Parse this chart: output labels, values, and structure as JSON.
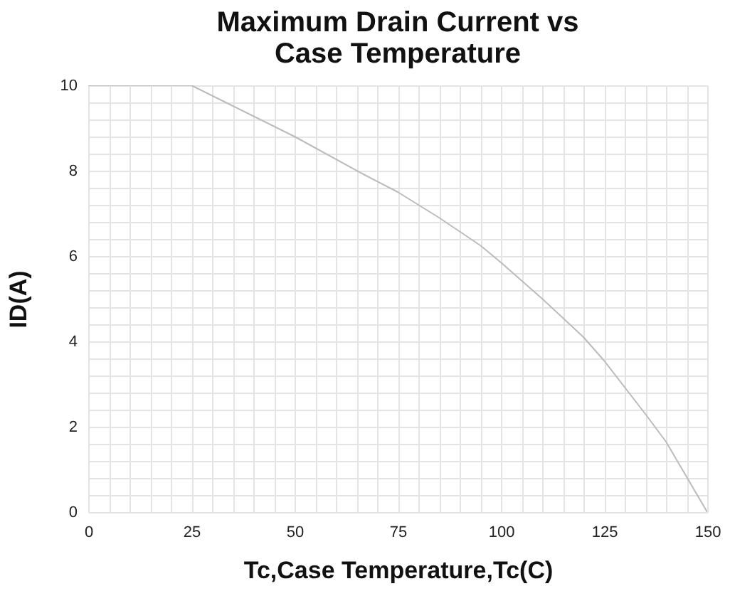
{
  "chart_data": {
    "type": "line",
    "title": "Maximum Drain Current vs\nCase Temperature",
    "xlabel": "Tc,Case Temperature,Tc(C)",
    "ylabel": "ID(A)",
    "x": [
      0,
      25,
      50,
      67,
      75,
      85,
      95,
      100,
      110,
      120,
      125,
      135,
      140,
      150
    ],
    "series": [
      {
        "color": "#bbbbbb",
        "values": [
          10,
          10,
          8.8,
          7.9,
          7.5,
          6.9,
          6.25,
          5.85,
          5.0,
          4.1,
          3.55,
          2.3,
          1.65,
          0
        ]
      }
    ],
    "xlim": [
      0,
      150
    ],
    "ylim": [
      0,
      10
    ],
    "xticks": [
      0,
      {
        "value": 5,
        "label": null
      },
      {
        "value": 10,
        "label": null
      },
      {
        "value": 15,
        "label": null
      },
      {
        "value": 20,
        "label": null
      },
      25,
      {
        "value": 30,
        "label": null
      },
      {
        "value": 35,
        "label": null
      },
      {
        "value": 40,
        "label": null
      },
      {
        "value": 45,
        "label": null
      },
      50,
      {
        "value": 55,
        "label": null
      },
      {
        "value": 60,
        "label": null
      },
      {
        "value": 65,
        "label": null
      },
      {
        "value": 70,
        "label": null
      },
      75,
      {
        "value": 80,
        "label": null
      },
      {
        "value": 85,
        "label": null
      },
      {
        "value": 90,
        "label": null
      },
      {
        "value": 95,
        "label": null
      },
      100,
      {
        "value": 105,
        "label": null
      },
      {
        "value": 110,
        "label": null
      },
      {
        "value": 115,
        "label": null
      },
      {
        "value": 120,
        "label": null
      },
      125,
      {
        "value": 130,
        "label": null
      },
      {
        "value": 135,
        "label": null
      },
      {
        "value": 140,
        "label": null
      },
      {
        "value": 145,
        "label": null
      },
      150
    ],
    "yticks": [
      0,
      {
        "value": 0.4,
        "label": null
      },
      {
        "value": 0.8,
        "label": null
      },
      {
        "value": 1.2,
        "label": null
      },
      {
        "value": 1.6,
        "label": null
      },
      2,
      {
        "value": 2.4,
        "label": null
      },
      {
        "value": 2.8,
        "label": null
      },
      {
        "value": 3.2,
        "label": null
      },
      {
        "value": 3.6,
        "label": null
      },
      4,
      {
        "value": 4.4,
        "label": null
      },
      {
        "value": 4.8,
        "label": null
      },
      {
        "value": 5.2,
        "label": null
      },
      {
        "value": 5.6,
        "label": null
      },
      6,
      {
        "value": 6.4,
        "label": null
      },
      {
        "value": 6.8,
        "label": null
      },
      {
        "value": 7.2,
        "label": null
      },
      {
        "value": 7.6,
        "label": null
      },
      8,
      {
        "value": 8.4,
        "label": null
      },
      {
        "value": 8.8,
        "label": null
      },
      {
        "value": 9.2,
        "label": null
      },
      {
        "value": 9.6,
        "label": null
      },
      10
    ],
    "grid": true,
    "marker": "none",
    "line_style": "solid"
  }
}
